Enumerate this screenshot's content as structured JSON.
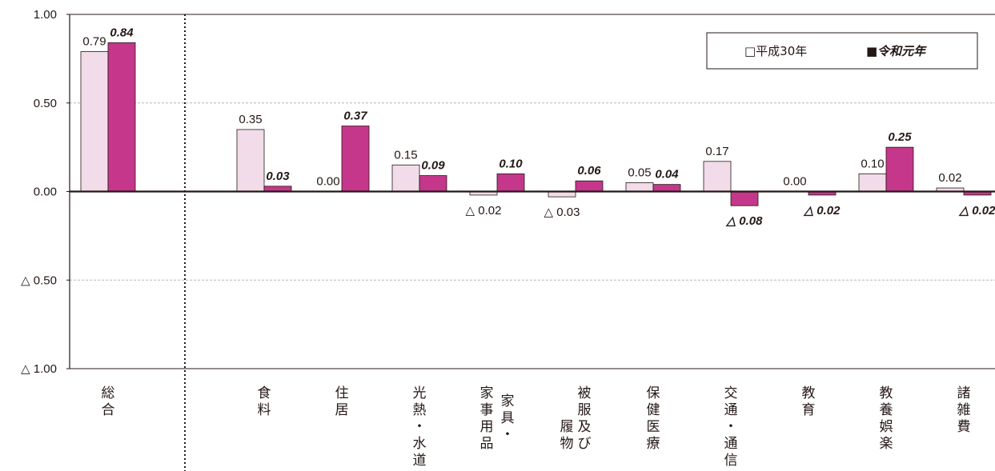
{
  "chart_data": {
    "type": "bar",
    "categories": [
      [
        "総",
        "合"
      ],
      [
        "食",
        "料"
      ],
      [
        "住",
        "居"
      ],
      [
        "光",
        "熱",
        "・",
        "水",
        "道"
      ],
      [
        "家",
        "事",
        "用",
        "品",
        "家",
        "具",
        "・"
      ],
      [
        "被",
        "服",
        "及",
        "び",
        "履",
        "物"
      ],
      [
        "保",
        "健",
        "医",
        "療"
      ],
      [
        "交",
        "通",
        "・",
        "通",
        "信"
      ],
      [
        "教",
        "育"
      ],
      [
        "教",
        "養",
        "娯",
        "楽"
      ],
      [
        "諸",
        "雑",
        "費"
      ]
    ],
    "series": [
      {
        "name": "□平成30年",
        "color": "#f2dce9",
        "values": [
          0.79,
          0.35,
          0.0,
          0.15,
          -0.02,
          -0.03,
          0.05,
          0.17,
          0.0,
          0.1,
          0.02
        ],
        "labels": [
          "0.79",
          "0.35",
          "0.00",
          "0.15",
          "△ 0.02",
          "△ 0.03",
          "0.05",
          "0.17",
          "0.00",
          "0.10",
          "0.02"
        ]
      },
      {
        "name": "■令和元年",
        "color": "#c4378b",
        "values": [
          0.84,
          0.03,
          0.37,
          0.09,
          0.1,
          0.06,
          0.04,
          -0.08,
          -0.02,
          0.25,
          -0.02
        ],
        "labels": [
          "0.84",
          "0.03",
          "0.37",
          "0.09",
          "0.10",
          "0.06",
          "0.04",
          "△ 0.08",
          "△ 0.02",
          "0.25",
          "△ 0.02"
        ]
      }
    ],
    "ylim": [
      -1.0,
      1.0
    ],
    "yticks": [
      1.0,
      0.5,
      0.0,
      -0.5,
      -1.0
    ],
    "ytick_labels": [
      "1.00",
      "0.50",
      "0.00",
      "△ 0.50",
      "△ 1.00"
    ],
    "grid": true,
    "legend_position": "top-right"
  }
}
